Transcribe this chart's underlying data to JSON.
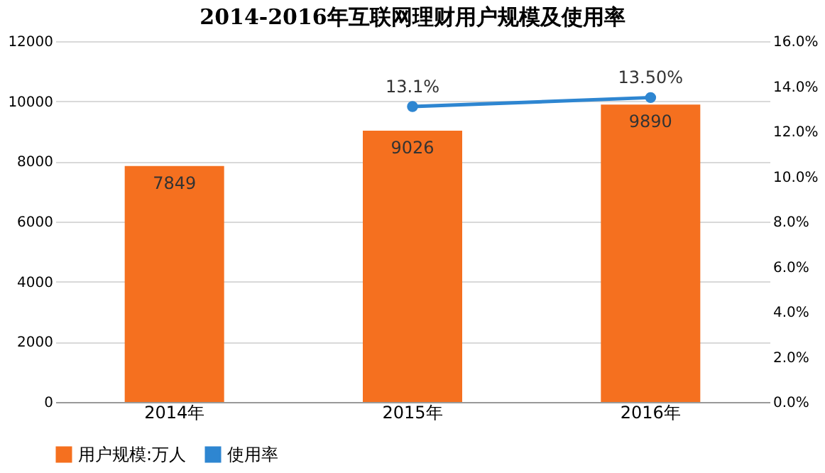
{
  "chart_data": {
    "type": "bar",
    "title": "2014-2016年互联网理财用户规模及使用率",
    "categories": [
      "2014年",
      "2015年",
      "2016年"
    ],
    "series": [
      {
        "name": "用户规模:万人",
        "color": "#f5701f",
        "values": [
          7849,
          9026,
          9890
        ],
        "value_labels": [
          "7849",
          "9026",
          "9890"
        ]
      },
      {
        "name": "使用率",
        "type": "line",
        "axis": "y2",
        "color": "#2e86d1",
        "marker": "circle",
        "values": [
          null,
          13.1,
          13.5
        ],
        "value_labels": [
          null,
          "13.1%",
          "13.50%"
        ]
      }
    ],
    "ylim": [
      0,
      12000
    ],
    "yticks": [
      0,
      2000,
      4000,
      6000,
      8000,
      10000,
      12000
    ],
    "y2lim": [
      0,
      16
    ],
    "y2ticks": [
      {
        "value": 0,
        "label": "0.0%"
      },
      {
        "value": 2,
        "label": "2.0%"
      },
      {
        "value": 4,
        "label": "4.0%"
      },
      {
        "value": 6,
        "label": "6.0%"
      },
      {
        "value": 8,
        "label": "8.0%"
      },
      {
        "value": 10,
        "label": "10.0%"
      },
      {
        "value": 12,
        "label": "12.0%"
      },
      {
        "value": 14,
        "label": "14.0%"
      },
      {
        "value": 16,
        "label": "16.0%"
      }
    ],
    "grid": "y",
    "legend": "bottom"
  }
}
